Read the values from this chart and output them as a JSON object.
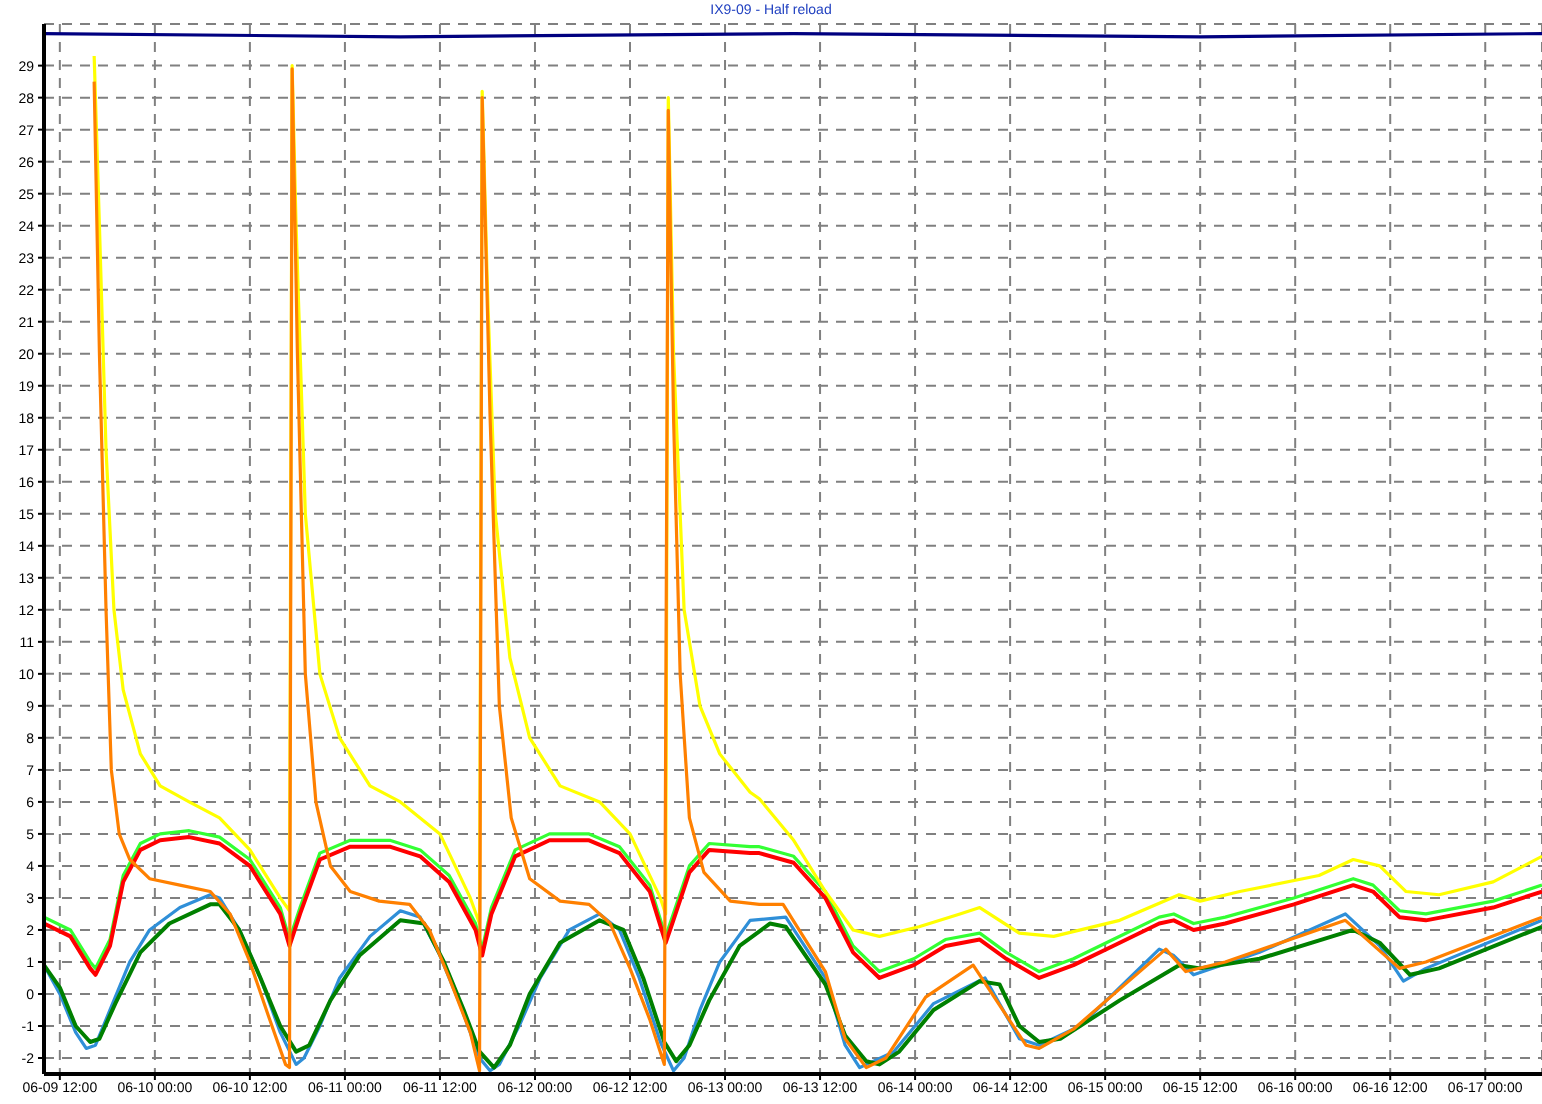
{
  "chart_data": {
    "type": "line",
    "title": "IX9-09 - Half reload",
    "grid": true,
    "marker": "none",
    "line_style": "solid",
    "xlim": [
      "--06-09T10:00",
      "--06-17T07:10"
    ],
    "xticks": [
      {
        "value": "--06-09T12:00",
        "label": "06-09 12:00"
      },
      {
        "value": "--06-10T00:00",
        "label": "06-10 00:00"
      },
      {
        "value": "--06-10T12:00",
        "label": "06-10 12:00"
      },
      {
        "value": "--06-11T00:00",
        "label": "06-11 00:00"
      },
      {
        "value": "--06-11T12:00",
        "label": "06-11 12:00"
      },
      {
        "value": "--06-12T00:00",
        "label": "06-12 00:00"
      },
      {
        "value": "--06-12T12:00",
        "label": "06-12 12:00"
      },
      {
        "value": "--06-13T00:00",
        "label": "06-13 00:00"
      },
      {
        "value": "--06-13T12:00",
        "label": "06-13 12:00"
      },
      {
        "value": "--06-14T00:00",
        "label": "06-14 00:00"
      },
      {
        "value": "--06-14T12:00",
        "label": "06-14 12:00"
      },
      {
        "value": "--06-15T00:00",
        "label": "06-15 00:00"
      },
      {
        "value": "--06-15T12:00",
        "label": "06-15 12:00"
      },
      {
        "value": "--06-16T00:00",
        "label": "06-16 00:00"
      },
      {
        "value": "--06-16T12:00",
        "label": "06-16 12:00"
      },
      {
        "value": "--06-17T00:00",
        "label": "06-17 00:00"
      }
    ],
    "ylim": [
      -2.5,
      30.3
    ],
    "yticks": [
      -2,
      -1,
      0,
      1,
      2,
      3,
      4,
      5,
      6,
      7,
      8,
      9,
      10,
      11,
      12,
      13,
      14,
      15,
      16,
      17,
      18,
      19,
      20,
      21,
      22,
      23,
      24,
      25,
      26,
      27,
      28,
      29
    ],
    "series": [
      {
        "color": "#000080",
        "x": [
          "--06-09T10:00",
          "--06-11T07:00",
          "--06-13T08:40",
          "--06-15T12:00",
          "--06-17T07:10"
        ],
        "values": [
          30.0,
          29.9,
          30.0,
          29.9,
          30.0
        ]
      },
      {
        "color": "#33ff33",
        "x": [
          "--06-09T10:00",
          "--06-09T13:20",
          "--06-09T15:50",
          "--06-09T16:30",
          "--06-09T18:20",
          "--06-09T20:00",
          "--06-09T22:10",
          "--06-10T00:40",
          "--06-10T04:20",
          "--06-10T08:10",
          "--06-10T12:00",
          "--06-10T15:50",
          "--06-10T17:00",
          "--06-10T18:20",
          "--06-10T20:50",
          "--06-11T00:40",
          "--06-11T05:40",
          "--06-11T09:30",
          "--06-11T13:10",
          "--06-11T16:30",
          "--06-11T17:20",
          "--06-11T18:30",
          "--06-11T21:30",
          "--06-12T01:50",
          "--06-12T06:50",
          "--06-12T10:40",
          "--06-12T14:30",
          "--06-12T16:30",
          "--06-12T17:20",
          "--06-12T19:30",
          "--06-12T22:00",
          "--06-13T03:10",
          "--06-13T04:20",
          "--06-13T08:40",
          "--06-13T12:40",
          "--06-13T16:10",
          "--06-13T19:30",
          "--06-13T23:50",
          "--06-14T03:50",
          "--06-14T08:10",
          "--06-14T11:30",
          "--06-14T15:40",
          "--06-14T20:00",
          "--06-15T01:00",
          "--06-15T06:50",
          "--06-15T08:40",
          "--06-15T11:10",
          "--06-15T15:10",
          "--06-15T23:50",
          "--06-16T07:20",
          "--06-16T09:50",
          "--06-16T13:10",
          "--06-16T16:30",
          "--06-17T01:00",
          "--06-17T07:10"
        ],
        "values": [
          2.4,
          2.0,
          1.0,
          0.8,
          1.7,
          3.7,
          4.7,
          5.0,
          5.1,
          4.9,
          4.2,
          2.7,
          1.7,
          2.7,
          4.4,
          4.8,
          4.8,
          4.5,
          3.7,
          2.2,
          1.4,
          2.7,
          4.5,
          5.0,
          5.0,
          4.6,
          3.4,
          1.8,
          2.4,
          4.0,
          4.7,
          4.6,
          4.6,
          4.3,
          3.2,
          1.5,
          0.7,
          1.1,
          1.7,
          1.9,
          1.3,
          0.7,
          1.1,
          1.7,
          2.4,
          2.5,
          2.2,
          2.4,
          3.0,
          3.6,
          3.4,
          2.6,
          2.5,
          2.9,
          3.4
        ]
      },
      {
        "color": "#ff0000",
        "x": [
          "--06-09T10:00",
          "--06-09T13:20",
          "--06-09T15:50",
          "--06-09T16:30",
          "--06-09T18:20",
          "--06-09T20:00",
          "--06-09T22:10",
          "--06-10T00:40",
          "--06-10T04:20",
          "--06-10T08:10",
          "--06-10T12:00",
          "--06-10T15:50",
          "--06-10T17:00",
          "--06-10T18:20",
          "--06-10T20:50",
          "--06-11T00:40",
          "--06-11T05:40",
          "--06-11T09:30",
          "--06-11T13:10",
          "--06-11T16:30",
          "--06-11T17:20",
          "--06-11T18:30",
          "--06-11T21:30",
          "--06-12T01:50",
          "--06-12T06:50",
          "--06-12T10:40",
          "--06-12T14:30",
          "--06-12T16:30",
          "--06-12T17:20",
          "--06-12T19:30",
          "--06-12T22:00",
          "--06-13T03:10",
          "--06-13T04:20",
          "--06-13T08:40",
          "--06-13T12:40",
          "--06-13T16:10",
          "--06-13T19:30",
          "--06-13T23:50",
          "--06-14T03:50",
          "--06-14T08:10",
          "--06-14T11:30",
          "--06-14T15:40",
          "--06-14T20:00",
          "--06-15T01:00",
          "--06-15T06:50",
          "--06-15T08:40",
          "--06-15T11:10",
          "--06-15T15:10",
          "--06-15T23:50",
          "--06-16T07:20",
          "--06-16T09:50",
          "--06-16T13:10",
          "--06-16T16:30",
          "--06-17T01:00",
          "--06-17T07:10"
        ],
        "values": [
          2.2,
          1.8,
          0.8,
          0.6,
          1.5,
          3.5,
          4.5,
          4.8,
          4.9,
          4.7,
          4.0,
          2.5,
          1.5,
          2.5,
          4.2,
          4.6,
          4.6,
          4.3,
          3.5,
          2.0,
          1.2,
          2.5,
          4.3,
          4.8,
          4.8,
          4.4,
          3.2,
          1.6,
          2.2,
          3.8,
          4.5,
          4.4,
          4.4,
          4.1,
          3.0,
          1.3,
          0.5,
          0.9,
          1.5,
          1.7,
          1.1,
          0.5,
          0.9,
          1.5,
          2.2,
          2.3,
          2.0,
          2.2,
          2.8,
          3.4,
          3.2,
          2.4,
          2.3,
          2.7,
          3.2
        ]
      },
      {
        "color": "#2f8fd8",
        "x": [
          "--06-09T10:00",
          "--06-09T12:00",
          "--06-09T14:00",
          "--06-09T15:20",
          "--06-09T16:30",
          "--06-09T18:20",
          "--06-09T20:50",
          "--06-09T23:20",
          "--06-10T03:10",
          "--06-10T07:00",
          "--06-10T08:10",
          "--06-10T10:40",
          "--06-10T13:20",
          "--06-10T15:50",
          "--06-10T17:50",
          "--06-10T18:50",
          "--06-10T20:50",
          "--06-10T23:20",
          "--06-11T03:10",
          "--06-11T07:00",
          "--06-11T09:30",
          "--06-11T12:00",
          "--06-11T14:30",
          "--06-11T17:00",
          "--06-11T18:20",
          "--06-11T19:30",
          "--06-11T22:00",
          "--06-12T00:40",
          "--06-12T04:20",
          "--06-12T08:10",
          "--06-12T10:40",
          "--06-12T13:10",
          "--06-12T15:50",
          "--06-12T17:30",
          "--06-12T18:50",
          "--06-12T20:50",
          "--06-12T23:20",
          "--06-13T03:10",
          "--06-13T07:40",
          "--06-13T12:40",
          "--06-13T15:10",
          "--06-13T17:00",
          "--06-13T21:20",
          "--06-14T02:20",
          "--06-14T08:50",
          "--06-14T13:10",
          "--06-14T15:40",
          "--06-14T20:50",
          "--06-15T06:50",
          "--06-15T08:40",
          "--06-15T11:10",
          "--06-15T19:30",
          "--06-16T06:20",
          "--06-16T10:40",
          "--06-16T13:40",
          "--06-16T16:30",
          "--06-17T07:10"
        ],
        "values": [
          0.9,
          0.0,
          -1.2,
          -1.7,
          -1.6,
          -0.5,
          1.0,
          2.0,
          2.7,
          3.1,
          3.0,
          2.0,
          0.5,
          -1.2,
          -2.2,
          -2.0,
          -1.0,
          0.5,
          1.8,
          2.6,
          2.4,
          1.2,
          -0.3,
          -2.0,
          -2.4,
          -2.2,
          -1.0,
          0.5,
          2.0,
          2.5,
          2.0,
          0.5,
          -1.5,
          -2.4,
          -2.0,
          -0.5,
          1.0,
          2.3,
          2.4,
          0.5,
          -1.6,
          -2.3,
          -1.8,
          -0.3,
          0.5,
          -1.4,
          -1.6,
          -1.0,
          1.4,
          1.2,
          0.6,
          1.3,
          2.5,
          1.5,
          0.4,
          0.8,
          2.3
        ]
      },
      {
        "color": "#008000",
        "x": [
          "--06-09T10:00",
          "--06-09T12:00",
          "--06-09T14:00",
          "--06-09T15:50",
          "--06-09T17:00",
          "--06-09T19:00",
          "--06-09T22:10",
          "--06-10T01:50",
          "--06-10T07:00",
          "--06-10T08:10",
          "--06-10T10:40",
          "--06-10T13:20",
          "--06-10T15:50",
          "--06-10T17:50",
          "--06-10T19:30",
          "--06-10T22:10",
          "--06-11T01:50",
          "--06-11T07:00",
          "--06-11T10:00",
          "--06-11T12:30",
          "--06-11T15:00",
          "--06-11T17:00",
          "--06-11T18:50",
          "--06-11T20:50",
          "--06-11T23:20",
          "--06-12T03:10",
          "--06-12T08:10",
          "--06-12T11:10",
          "--06-12T13:40",
          "--06-12T16:20",
          "--06-12T17:50",
          "--06-12T19:30",
          "--06-12T22:00",
          "--06-13T01:50",
          "--06-13T05:40",
          "--06-13T07:40",
          "--06-13T12:40",
          "--06-13T15:10",
          "--06-13T17:50",
          "--06-13T19:30",
          "--06-13T22:00",
          "--06-14T02:20",
          "--06-14T08:10",
          "--06-14T10:40",
          "--06-14T13:10",
          "--06-14T15:40",
          "--06-14T18:20",
          "--06-15T01:50",
          "--06-15T09:20",
          "--06-15T12:00",
          "--06-15T19:30",
          "--06-16T07:20",
          "--06-16T10:40",
          "--06-16T14:30",
          "--06-16T18:10",
          "--06-17T07:10"
        ],
        "values": [
          0.9,
          0.2,
          -1.0,
          -1.5,
          -1.4,
          -0.3,
          1.3,
          2.2,
          2.8,
          2.8,
          2.0,
          0.5,
          -1.0,
          -1.8,
          -1.6,
          -0.2,
          1.2,
          2.3,
          2.2,
          1.0,
          -0.5,
          -1.8,
          -2.3,
          -1.6,
          0.0,
          1.6,
          2.3,
          2.0,
          0.5,
          -1.5,
          -2.1,
          -1.6,
          -0.2,
          1.5,
          2.2,
          2.1,
          0.3,
          -1.3,
          -2.1,
          -2.2,
          -1.8,
          -0.5,
          0.4,
          0.3,
          -1.0,
          -1.5,
          -1.4,
          -0.2,
          0.9,
          0.8,
          1.1,
          2.0,
          1.6,
          0.6,
          0.8,
          2.1
        ]
      },
      {
        "color": "#ffff00",
        "x": [
          "--06-09T16:20",
          "--06-09T17:00",
          "--06-09T17:50",
          "--06-09T18:50",
          "--06-09T20:00",
          "--06-09T22:10",
          "--06-10T00:40",
          "--06-10T04:20",
          "--06-10T08:10",
          "--06-10T12:00",
          "--06-10T15:50",
          "--06-10T17:00",
          "--06-10T17:20",
          "--06-10T17:50",
          "--06-10T19:00",
          "--06-10T20:50",
          "--06-10T23:20",
          "--06-11T03:10",
          "--06-11T07:00",
          "--06-11T12:00",
          "--06-11T15:50",
          "--06-11T17:00",
          "--06-11T17:20",
          "--06-11T18:00",
          "--06-11T19:00",
          "--06-11T20:50",
          "--06-11T23:20",
          "--06-12T03:10",
          "--06-12T08:10",
          "--06-12T12:00",
          "--06-12T15:50",
          "--06-12T16:30",
          "--06-12T16:50",
          "--06-12T17:30",
          "--06-12T18:50",
          "--06-12T20:50",
          "--06-12T23:20",
          "--06-13T03:10",
          "--06-13T04:20",
          "--06-13T08:40",
          "--06-13T12:40",
          "--06-13T16:10",
          "--06-13T19:30",
          "--06-14T00:30",
          "--06-14T05:40",
          "--06-14T08:10",
          "--06-14T13:10",
          "--06-14T17:30",
          "--06-15T01:50",
          "--06-15T09:20",
          "--06-15T12:00",
          "--06-15T17:00",
          "--06-16T03:00",
          "--06-16T07:20",
          "--06-16T10:40",
          "--06-16T14:00",
          "--06-16T18:10",
          "--06-17T01:00",
          "--06-17T07:10"
        ],
        "values": [
          29.3,
          24,
          17,
          12,
          9.5,
          7.5,
          6.5,
          6.0,
          5.5,
          4.5,
          3.0,
          2.6,
          29.0,
          24,
          15,
          10,
          8,
          6.5,
          6.0,
          5.0,
          3.0,
          2.2,
          28.2,
          22,
          15,
          10.5,
          8.0,
          6.5,
          6.0,
          5.0,
          3.0,
          2.5,
          28.0,
          20,
          12,
          9,
          7.5,
          6.3,
          6.1,
          4.8,
          3.2,
          2.0,
          1.8,
          2.1,
          2.5,
          2.7,
          1.9,
          1.8,
          2.3,
          3.1,
          2.9,
          3.2,
          3.7,
          4.2,
          4.0,
          3.2,
          3.1,
          3.5,
          4.3
        ]
      },
      {
        "color": "#ff8000",
        "x": [
          "--06-09T16:20",
          "--06-09T17:00",
          "--06-09T17:50",
          "--06-09T18:30",
          "--06-09T19:30",
          "--06-09T20:50",
          "--06-09T23:20",
          "--06-10T03:10",
          "--06-10T07:00",
          "--06-10T09:30",
          "--06-10T12:00",
          "--06-10T14:30",
          "--06-10T16:30",
          "--06-10T17:00",
          "--06-10T17:20",
          "--06-10T18:00",
          "--06-10T19:00",
          "--06-10T20:20",
          "--06-10T22:10",
          "--06-11T00:40",
          "--06-11T04:20",
          "--06-11T08:10",
          "--06-11T10:40",
          "--06-11T13:10",
          "--06-11T15:50",
          "--06-11T17:00",
          "--06-11T17:20",
          "--06-11T18:20",
          "--06-11T19:30",
          "--06-11T21:00",
          "--06-11T23:20",
          "--06-12T03:10",
          "--06-12T06:50",
          "--06-12T09:30",
          "--06-12T12:00",
          "--06-12T14:30",
          "--06-12T16:20",
          "--06-12T16:50",
          "--06-12T17:30",
          "--06-12T18:20",
          "--06-12T19:30",
          "--06-12T21:20",
          "--06-13T00:40",
          "--06-13T04:20",
          "--06-13T07:20",
          "--06-13T12:40",
          "--06-13T15:10",
          "--06-13T17:50",
          "--06-13T20:20",
          "--06-14T01:20",
          "--06-14T07:20",
          "--06-14T14:00",
          "--06-14T15:40",
          "--06-14T20:00",
          "--06-15T02:30",
          "--06-15T07:40",
          "--06-15T10:10",
          "--06-15T15:10",
          "--06-16T06:20",
          "--06-16T13:10",
          "--06-16T16:30",
          "--06-17T07:10"
        ],
        "values": [
          28.5,
          20,
          12,
          7,
          5,
          4.2,
          3.6,
          3.4,
          3.2,
          2.5,
          1.0,
          -0.8,
          -2.2,
          -2.3,
          28.9,
          20,
          10,
          6,
          4,
          3.2,
          2.9,
          2.8,
          2.0,
          0.5,
          -1.2,
          -2.4,
          28.0,
          18,
          9,
          5.5,
          3.6,
          2.9,
          2.8,
          2.2,
          0.8,
          -0.8,
          -2.2,
          27.6,
          18,
          10,
          5.5,
          3.8,
          2.9,
          2.8,
          2.8,
          0.7,
          -1.4,
          -2.3,
          -2.0,
          -0.1,
          0.9,
          -1.6,
          -1.7,
          -1.1,
          0.3,
          1.4,
          0.7,
          1.0,
          2.3,
          0.8,
          1.0,
          2.4
        ]
      }
    ]
  }
}
